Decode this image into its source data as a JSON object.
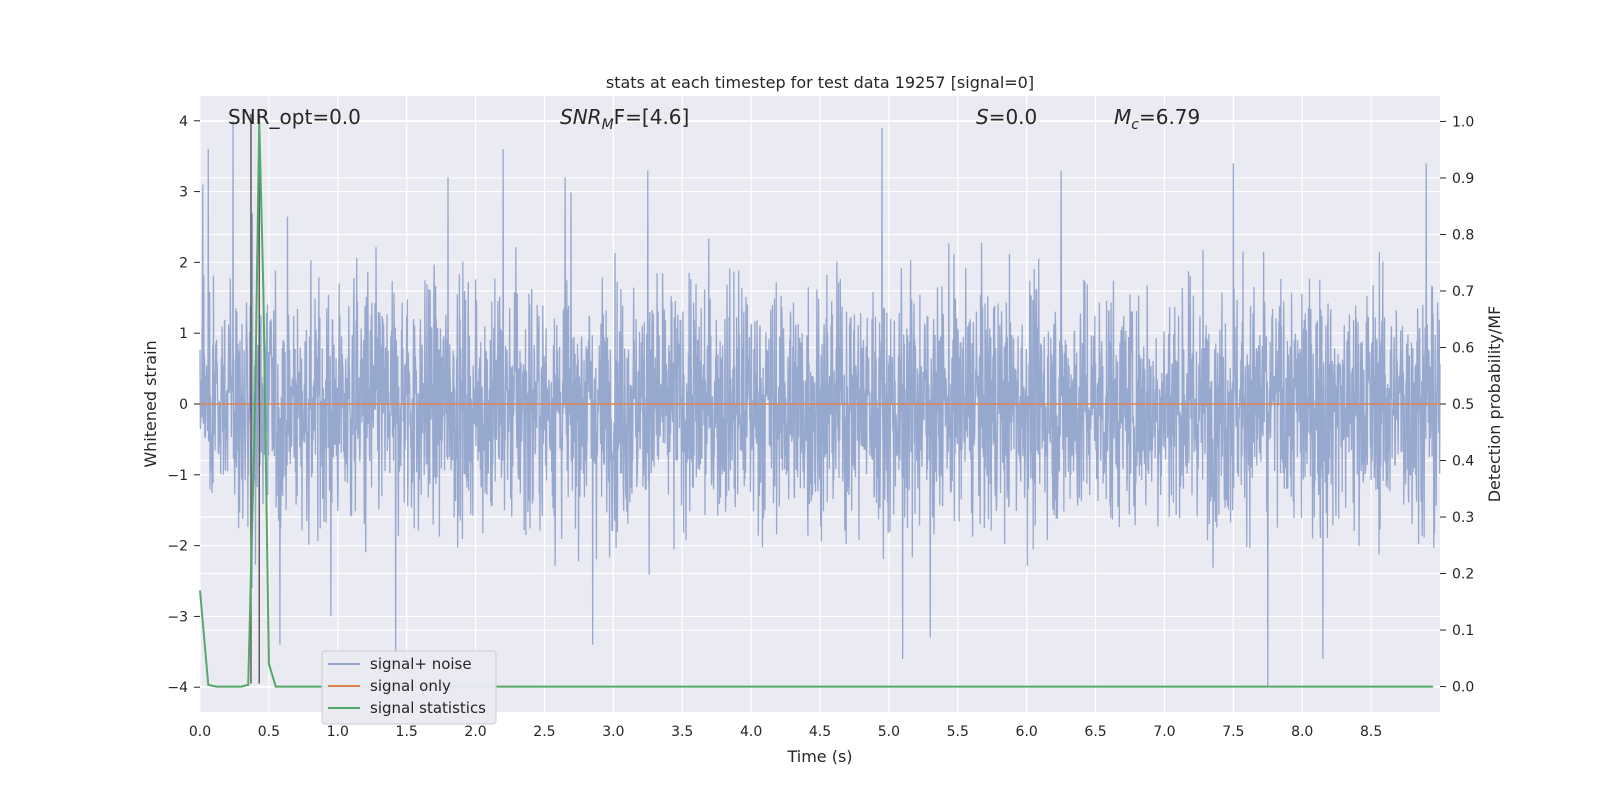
{
  "chart_data": {
    "type": "line",
    "title": "stats at each timestep for test data 19257 [signal=0]",
    "xlabel": "Time (s)",
    "ylabel": "Whitened strain",
    "ylabel_right": "Detection probability/MF",
    "xlim": [
      0.0,
      9.0
    ],
    "ylim": [
      -4.35,
      4.35
    ],
    "ylim_right": [
      -0.045,
      1.045
    ],
    "xticks": [
      0.0,
      0.5,
      1.0,
      1.5,
      2.0,
      2.5,
      3.0,
      3.5,
      4.0,
      4.5,
      5.0,
      5.5,
      6.0,
      6.5,
      7.0,
      7.5,
      8.0,
      8.5
    ],
    "yticks": [
      4,
      3,
      2,
      1,
      0,
      -1,
      -2,
      -3,
      -4
    ],
    "ytick_labels": [
      "4",
      "3",
      "2",
      "1",
      "0",
      "−1",
      "−2",
      "−3",
      "−4"
    ],
    "yticks_right": [
      1.0,
      0.9,
      0.8,
      0.7,
      0.6,
      0.5,
      0.4,
      0.3,
      0.2,
      0.1,
      0.0
    ],
    "grid": true,
    "legend_position": "bottom-left",
    "annotations": {
      "snr_opt": "SNR_opt=0.0",
      "snr_mf_base": "SNR",
      "snr_mf_sub": "M",
      "snr_mf_rest": "F=[4.6]",
      "s_label": "S",
      "s_value": "=0.0",
      "mc_base": "M",
      "mc_sub": "c",
      "mc_value": "=6.79"
    },
    "vlines_x": [
      0.37,
      0.43
    ],
    "series": [
      {
        "name": "signal+ noise",
        "color": "#92a4cc",
        "axis": "left",
        "sample_rate": 400,
        "amplitude_envelope": 1.2,
        "peaks": [
          [
            0.02,
            3.1
          ],
          [
            0.06,
            3.6
          ],
          [
            0.24,
            4.0
          ],
          [
            0.38,
            2.7
          ],
          [
            0.58,
            -3.4
          ],
          [
            0.95,
            -3.0
          ],
          [
            1.42,
            -3.8
          ],
          [
            1.8,
            3.2
          ],
          [
            2.2,
            3.6
          ],
          [
            2.65,
            3.2
          ],
          [
            2.85,
            -3.4
          ],
          [
            3.25,
            3.3
          ],
          [
            4.95,
            3.9
          ],
          [
            5.1,
            -3.6
          ],
          [
            5.3,
            -3.3
          ],
          [
            6.25,
            3.3
          ],
          [
            7.5,
            3.4
          ],
          [
            7.75,
            -4.0
          ],
          [
            8.15,
            -3.6
          ],
          [
            8.9,
            3.4
          ]
        ]
      },
      {
        "name": "signal only",
        "color": "#dd8452",
        "axis": "left",
        "constant": 0.0
      },
      {
        "name": "signal statistics",
        "color": "#55a868",
        "axis": "right",
        "x": [
          0.0,
          0.06,
          0.12,
          0.3,
          0.35,
          0.4,
          0.43,
          0.46,
          0.5,
          0.55,
          1.0,
          2.0,
          3.0,
          4.0,
          5.0,
          6.0,
          7.0,
          8.0,
          8.95
        ],
        "values": [
          0.17,
          0.003,
          0.0,
          0.0,
          0.003,
          0.5,
          1.0,
          0.7,
          0.04,
          0.0,
          0.0,
          0.0,
          0.0,
          0.0,
          0.0,
          0.0,
          0.0,
          0.0,
          0.0
        ]
      }
    ],
    "legend": [
      "signal+ noise",
      "signal only",
      "signal statistics"
    ]
  }
}
